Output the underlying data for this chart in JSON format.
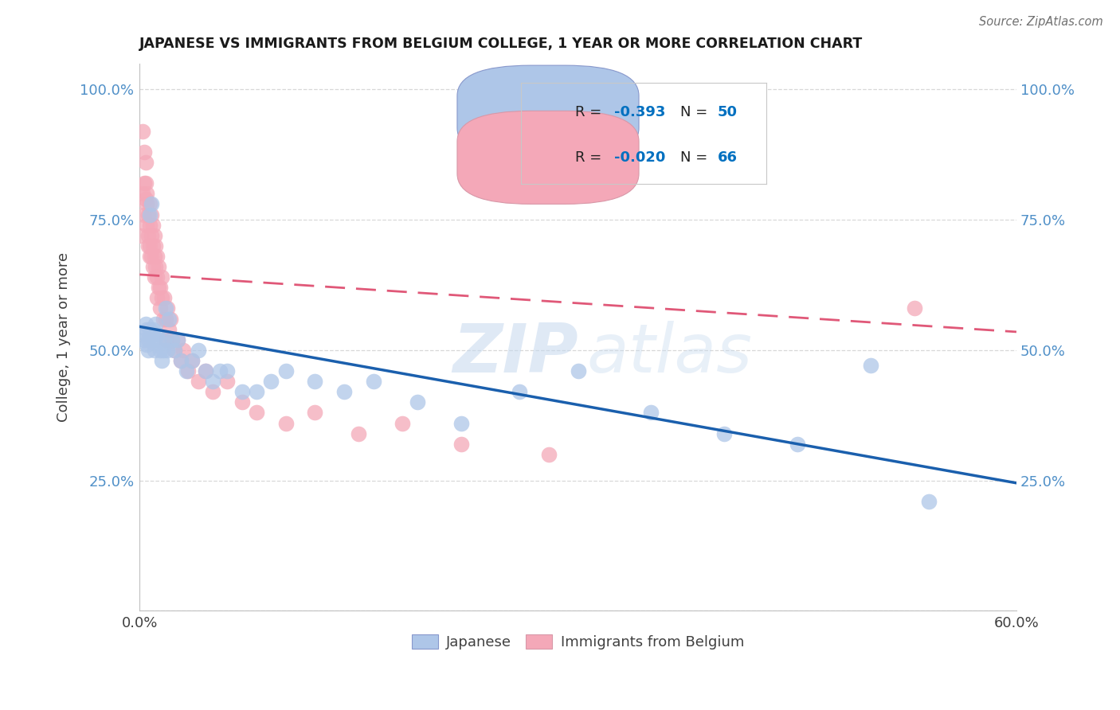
{
  "title": "JAPANESE VS IMMIGRANTS FROM BELGIUM COLLEGE, 1 YEAR OR MORE CORRELATION CHART",
  "source": "Source: ZipAtlas.com",
  "ylabel": "College, 1 year or more",
  "xlim": [
    0.0,
    0.6
  ],
  "ylim": [
    0.0,
    1.05
  ],
  "xticks": [
    0.0,
    0.1,
    0.2,
    0.3,
    0.4,
    0.5,
    0.6
  ],
  "xticklabels": [
    "0.0%",
    "",
    "",
    "",
    "",
    "",
    "60.0%"
  ],
  "yticks": [
    0.0,
    0.25,
    0.5,
    0.75,
    1.0
  ],
  "yticklabels": [
    "",
    "25.0%",
    "50.0%",
    "75.0%",
    "100.0%"
  ],
  "r_color": "#0070C0",
  "blue_scatter_color": "#aec6e8",
  "pink_scatter_color": "#f4a8b8",
  "blue_line_color": "#1a5fad",
  "pink_line_color": "#e05878",
  "watermark_zip": "ZIP",
  "watermark_atlas": "atlas",
  "japanese_x": [
    0.003,
    0.004,
    0.004,
    0.005,
    0.005,
    0.006,
    0.006,
    0.007,
    0.007,
    0.008,
    0.009,
    0.01,
    0.01,
    0.011,
    0.012,
    0.013,
    0.014,
    0.015,
    0.016,
    0.017,
    0.018,
    0.019,
    0.02,
    0.022,
    0.024,
    0.026,
    0.028,
    0.032,
    0.036,
    0.04,
    0.045,
    0.05,
    0.055,
    0.06,
    0.07,
    0.08,
    0.09,
    0.1,
    0.12,
    0.14,
    0.16,
    0.19,
    0.22,
    0.26,
    0.3,
    0.35,
    0.4,
    0.45,
    0.5,
    0.54
  ],
  "japanese_y": [
    0.52,
    0.55,
    0.53,
    0.51,
    0.54,
    0.52,
    0.5,
    0.54,
    0.76,
    0.78,
    0.54,
    0.52,
    0.5,
    0.55,
    0.53,
    0.52,
    0.5,
    0.48,
    0.5,
    0.52,
    0.58,
    0.5,
    0.56,
    0.52,
    0.5,
    0.52,
    0.48,
    0.46,
    0.48,
    0.5,
    0.46,
    0.44,
    0.46,
    0.46,
    0.42,
    0.42,
    0.44,
    0.46,
    0.44,
    0.42,
    0.44,
    0.4,
    0.36,
    0.42,
    0.46,
    0.38,
    0.34,
    0.32,
    0.47,
    0.21
  ],
  "belgium_x": [
    0.001,
    0.002,
    0.002,
    0.003,
    0.003,
    0.003,
    0.004,
    0.004,
    0.004,
    0.005,
    0.005,
    0.005,
    0.006,
    0.006,
    0.006,
    0.007,
    0.007,
    0.007,
    0.007,
    0.008,
    0.008,
    0.008,
    0.009,
    0.009,
    0.009,
    0.01,
    0.01,
    0.01,
    0.011,
    0.011,
    0.012,
    0.012,
    0.012,
    0.013,
    0.013,
    0.014,
    0.014,
    0.015,
    0.015,
    0.016,
    0.017,
    0.018,
    0.018,
    0.019,
    0.02,
    0.021,
    0.022,
    0.024,
    0.026,
    0.028,
    0.03,
    0.033,
    0.036,
    0.04,
    0.045,
    0.05,
    0.06,
    0.07,
    0.08,
    0.1,
    0.12,
    0.15,
    0.18,
    0.22,
    0.28,
    0.53
  ],
  "belgium_y": [
    0.72,
    0.8,
    0.92,
    0.88,
    0.82,
    0.76,
    0.86,
    0.82,
    0.79,
    0.78,
    0.74,
    0.8,
    0.76,
    0.72,
    0.7,
    0.78,
    0.74,
    0.7,
    0.68,
    0.76,
    0.72,
    0.68,
    0.74,
    0.7,
    0.66,
    0.72,
    0.68,
    0.64,
    0.7,
    0.66,
    0.68,
    0.64,
    0.6,
    0.66,
    0.62,
    0.62,
    0.58,
    0.64,
    0.6,
    0.56,
    0.6,
    0.56,
    0.52,
    0.58,
    0.54,
    0.56,
    0.52,
    0.5,
    0.52,
    0.48,
    0.5,
    0.46,
    0.48,
    0.44,
    0.46,
    0.42,
    0.44,
    0.4,
    0.38,
    0.36,
    0.38,
    0.34,
    0.36,
    0.32,
    0.3,
    0.58
  ],
  "blue_trendline_x": [
    0.0,
    0.6
  ],
  "blue_trendline_y": [
    0.545,
    0.245
  ],
  "pink_trendline_x": [
    0.0,
    0.6
  ],
  "pink_trendline_y": [
    0.645,
    0.535
  ]
}
